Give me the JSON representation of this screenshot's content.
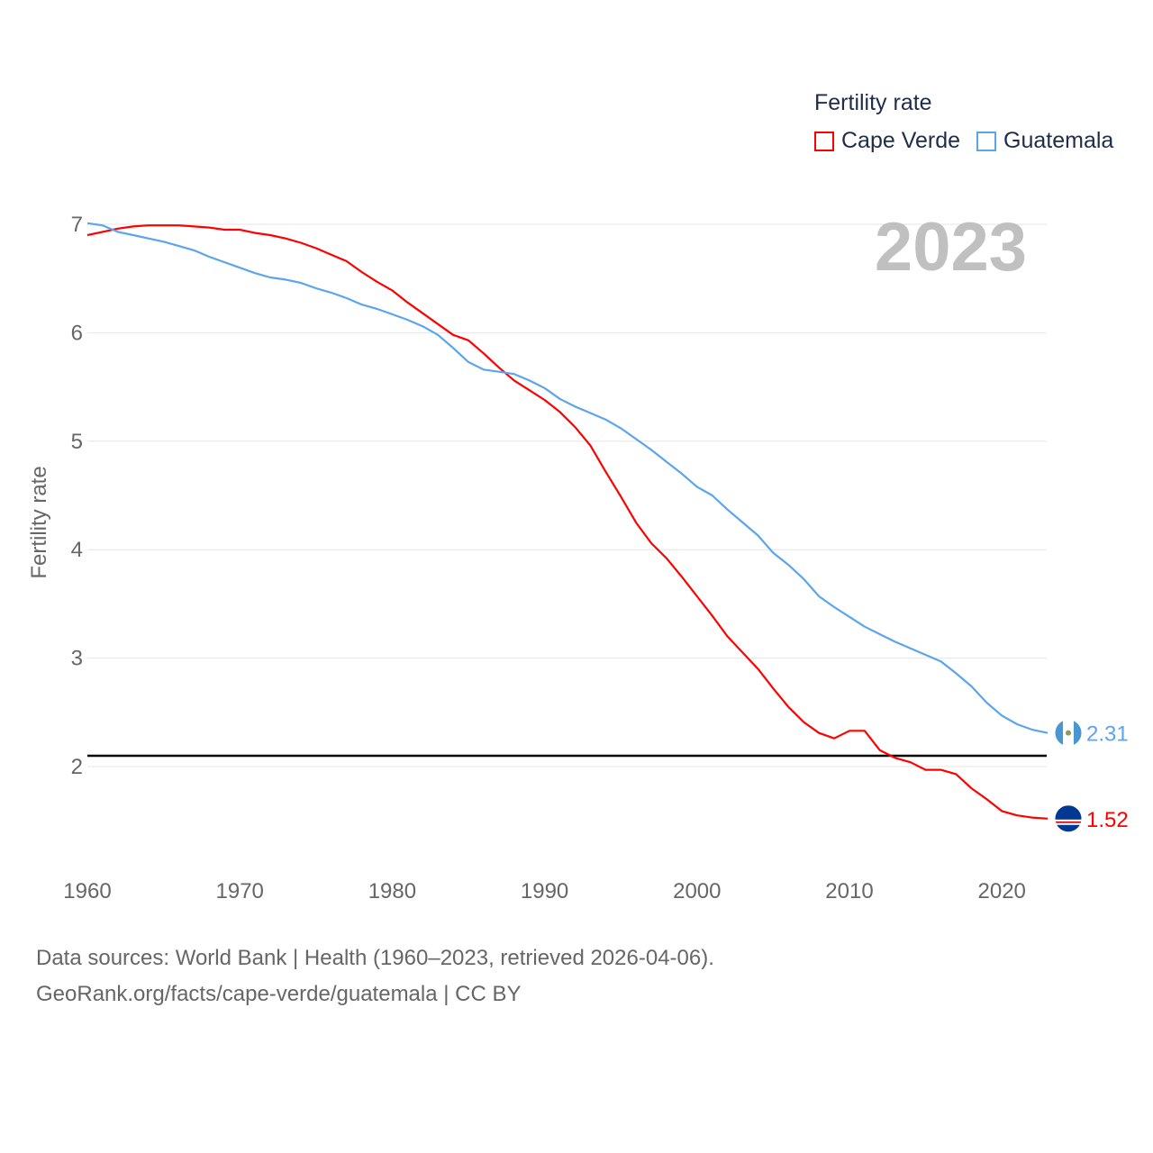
{
  "legend": {
    "title": "Fertility rate"
  },
  "source": {
    "line1": "Data sources: World Bank | Health (1960–2023, retrieved 2026-04-06).",
    "line2": "GeoRank.org/facts/cape-verde/guatemala | CC BY"
  },
  "chart_data": {
    "type": "line",
    "title": "",
    "year_label": "2023",
    "xlabel": "",
    "ylabel": "Fertility rate",
    "xlim": [
      1960,
      2023
    ],
    "ylim": [
      1.1,
      7.0
    ],
    "x_ticks": [
      1960,
      1970,
      1980,
      1990,
      2000,
      2010,
      2020
    ],
    "y_ticks": [
      2,
      3,
      4,
      5,
      6,
      7
    ],
    "grid": true,
    "legend_position": "top-right",
    "reference_line": {
      "value": 2.1,
      "color": "#000000"
    },
    "x_start": 1960,
    "series": [
      {
        "name": "Cape Verde",
        "color": "#ff0000",
        "end_label": "1.52",
        "values": [
          6.9,
          6.93,
          6.96,
          6.98,
          6.99,
          6.99,
          6.99,
          6.98,
          6.97,
          6.95,
          6.95,
          6.92,
          6.9,
          6.87,
          6.83,
          6.78,
          6.72,
          6.66,
          6.56,
          6.47,
          6.39,
          6.28,
          6.18,
          6.08,
          5.98,
          5.93,
          5.81,
          5.68,
          5.56,
          5.47,
          5.38,
          5.27,
          5.13,
          4.96,
          4.72,
          4.49,
          4.25,
          4.06,
          3.92,
          3.75,
          3.57,
          3.39,
          3.2,
          3.05,
          2.9,
          2.72,
          2.55,
          2.41,
          2.31,
          2.26,
          2.33,
          2.33,
          2.15,
          2.08,
          2.04,
          1.97,
          1.97,
          1.93,
          1.8,
          1.7,
          1.59,
          1.55,
          1.53,
          1.52
        ]
      },
      {
        "name": "Guatemala",
        "color": "#5aa5ee",
        "end_label": "2.31",
        "values": [
          7.01,
          6.99,
          6.93,
          6.9,
          6.87,
          6.84,
          6.8,
          6.76,
          6.7,
          6.65,
          6.6,
          6.55,
          6.51,
          6.49,
          6.46,
          6.41,
          6.37,
          6.32,
          6.26,
          6.22,
          6.17,
          6.12,
          6.06,
          5.98,
          5.86,
          5.73,
          5.66,
          5.64,
          5.62,
          5.56,
          5.49,
          5.39,
          5.32,
          5.26,
          5.2,
          5.12,
          5.02,
          4.92,
          4.81,
          4.7,
          4.58,
          4.5,
          4.37,
          4.25,
          4.13,
          3.97,
          3.86,
          3.73,
          3.57,
          3.47,
          3.38,
          3.29,
          3.22,
          3.15,
          3.09,
          3.03,
          2.97,
          2.86,
          2.74,
          2.59,
          2.47,
          2.39,
          2.34,
          2.31
        ]
      }
    ]
  }
}
